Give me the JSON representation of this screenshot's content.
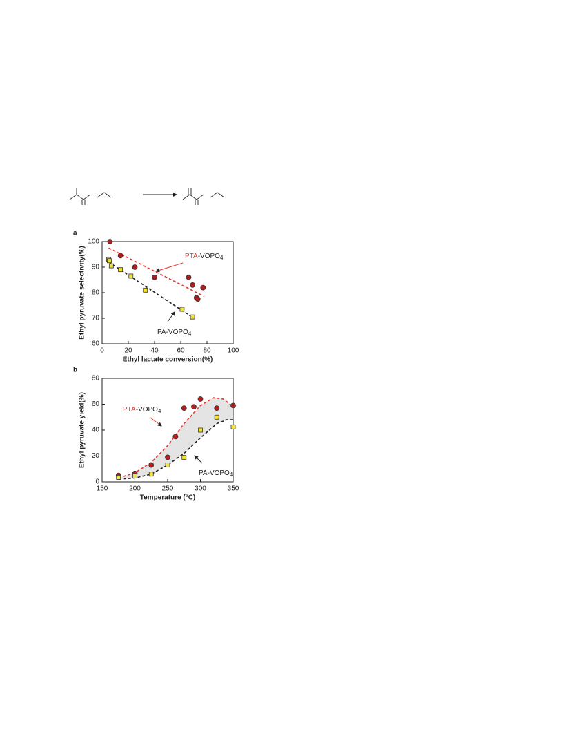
{
  "chart_data": [
    {
      "type": "scatter",
      "panel_label": "a",
      "xlabel": "Ethyl lactate conversion(%)",
      "ylabel": "Ethyl pyruvate selectivity(%)",
      "xlim": [
        0,
        100
      ],
      "ylim": [
        60,
        100
      ],
      "xticks": [
        0,
        20,
        40,
        60,
        80,
        100
      ],
      "yticks": [
        60,
        70,
        80,
        90,
        100
      ],
      "series": [
        {
          "color": "#b01e1e",
          "marker": "circle",
          "x": [
            6,
            14,
            25,
            40,
            66,
            69,
            72,
            73,
            77
          ],
          "values": [
            100,
            94.5,
            90,
            86,
            86,
            83,
            78,
            77.5,
            82
          ]
        },
        {
          "color": "#f2e43a",
          "marker": "square",
          "x": [
            5,
            5.5,
            7,
            14,
            22,
            33,
            61,
            69
          ],
          "values": [
            93,
            92.5,
            90.5,
            89,
            86.5,
            81,
            73.5,
            70.5
          ]
        }
      ],
      "fits": [
        {
          "color": "#e8322c",
          "x": [
            5,
            78
          ],
          "values": [
            97.5,
            78.5
          ]
        },
        {
          "color": "#222222",
          "x": [
            5,
            70
          ],
          "values": [
            92,
            70
          ]
        }
      ],
      "annotations": [
        {
          "parts": [
            "PTA",
            "-VOPO",
            "4"
          ],
          "color": "#e8322c"
        },
        {
          "parts": [
            "PA",
            "-VOPO",
            "4"
          ],
          "color": "#222222"
        }
      ]
    },
    {
      "type": "scatter",
      "panel_label": "b",
      "xlabel": "Temperature (°C)",
      "ylabel": "Ethyl pyruvate yield(%)",
      "xlim": [
        150,
        350
      ],
      "ylim": [
        0,
        80
      ],
      "xticks": [
        150,
        200,
        250,
        300,
        350
      ],
      "yticks": [
        0,
        20,
        40,
        60,
        80
      ],
      "series": [
        {
          "color": "#b01e1e",
          "marker": "circle",
          "x": [
            175,
            200,
            225,
            250,
            262,
            275,
            290,
            300,
            325,
            350
          ],
          "values": [
            5,
            6.5,
            13,
            19,
            35,
            57,
            58,
            64,
            57,
            59
          ]
        },
        {
          "color": "#f2e43a",
          "marker": "square",
          "x": [
            175,
            200,
            225,
            250,
            275,
            300,
            325,
            350
          ],
          "values": [
            3.5,
            4.5,
            6,
            13,
            19,
            40,
            50,
            42.5
          ]
        }
      ],
      "fits": [
        {
          "color": "#e8322c",
          "x": [
            175,
            200,
            225,
            250,
            275,
            300,
            320,
            335,
            350
          ],
          "values": [
            3,
            7,
            15,
            28,
            45,
            59,
            65,
            64,
            58
          ]
        },
        {
          "color": "#222222",
          "x": [
            175,
            200,
            225,
            250,
            275,
            300,
            325,
            340,
            350
          ],
          "values": [
            2,
            3,
            6,
            13,
            22,
            34,
            45,
            48,
            48
          ]
        }
      ],
      "annotations": [
        {
          "parts": [
            "PTA",
            "-VOPO",
            "4"
          ],
          "color": "#e8322c"
        },
        {
          "parts": [
            "PA",
            "-VOPO",
            "4"
          ],
          "color": "#222222"
        }
      ]
    }
  ]
}
